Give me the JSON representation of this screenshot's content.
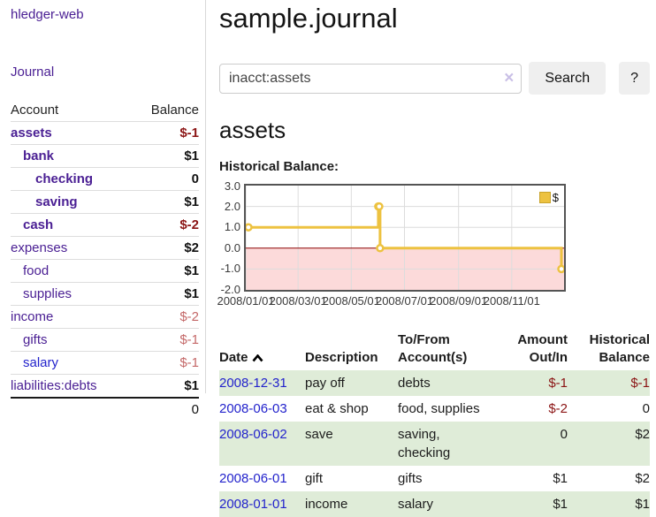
{
  "app": {
    "brand": "hledger-web",
    "nav_journal": "Journal"
  },
  "sidebar": {
    "header": {
      "account": "Account",
      "balance": "Balance"
    },
    "accounts": [
      {
        "name": "assets",
        "balance": "$-1"
      },
      {
        "name": "bank",
        "balance": "$1"
      },
      {
        "name": "checking",
        "balance": "0"
      },
      {
        "name": "saving",
        "balance": "$1"
      },
      {
        "name": "cash",
        "balance": "$-2"
      },
      {
        "name": "expenses",
        "balance": "$2"
      },
      {
        "name": "food",
        "balance": "$1"
      },
      {
        "name": "supplies",
        "balance": "$1"
      },
      {
        "name": "income",
        "balance": "$-2"
      },
      {
        "name": "gifts",
        "balance": "$-1"
      },
      {
        "name": "salary",
        "balance": "$-1"
      },
      {
        "name": "liabilities:debts",
        "balance": "$1"
      }
    ],
    "total": "0"
  },
  "main": {
    "title": "sample.journal",
    "search": {
      "value": "inacct:assets",
      "clear": "×",
      "button": "Search",
      "help": "?"
    },
    "account_heading": "assets",
    "chart_label": "Historical Balance:"
  },
  "chart_data": {
    "type": "line",
    "title": "Historical Balance:",
    "series": [
      {
        "name": "$",
        "steps": true,
        "points": [
          [
            "2008/01/01",
            1
          ],
          [
            "2008/06/01",
            2
          ],
          [
            "2008/06/02",
            2
          ],
          [
            "2008/06/03",
            0
          ],
          [
            "2008/12/31",
            -1
          ]
        ]
      }
    ],
    "xrange": [
      "2008/01/01",
      "2008/12/31"
    ],
    "ylim": [
      -2,
      3
    ],
    "yticks": [
      "3.0",
      "2.0",
      "1.0",
      "0.0",
      "-1.0",
      "-2.0"
    ],
    "xticks": [
      "2008/01/01",
      "2008/03/01",
      "2008/05/01",
      "2008/07/01",
      "2008/09/01",
      "2008/11/01"
    ],
    "legend": {
      "label": "$",
      "position": "top-right"
    },
    "colors": {
      "line": "#edc240",
      "marker_fill": "#ffffff",
      "negative_region": "#fcdada",
      "zero_line": "#8b0000",
      "grid": "#dcdcdc"
    }
  },
  "register": {
    "headers": [
      "Date",
      "Description",
      "To/From Account(s)",
      "Amount Out/In",
      "Historical Balance"
    ],
    "rows": [
      {
        "date": "2008-12-31",
        "description": "pay off",
        "accounts": "debts",
        "amount": "$-1",
        "balance": "$-1"
      },
      {
        "date": "2008-06-03",
        "description": "eat & shop",
        "accounts": "food, supplies",
        "amount": "$-2",
        "balance": "0"
      },
      {
        "date": "2008-06-02",
        "description": "save",
        "accounts": "saving, checking",
        "amount": "0",
        "balance": "$2"
      },
      {
        "date": "2008-06-01",
        "description": "gift",
        "accounts": "gifts",
        "amount": "$1",
        "balance": "$2"
      },
      {
        "date": "2008-01-01",
        "description": "income",
        "accounts": "salary",
        "amount": "$1",
        "balance": "$1"
      }
    ]
  }
}
